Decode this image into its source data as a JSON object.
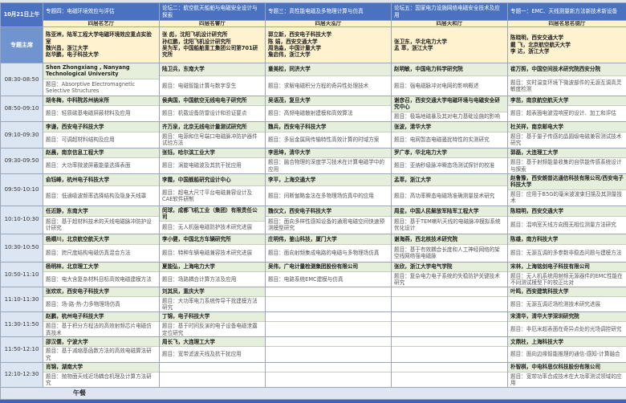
{
  "date_label": "10月21日上午",
  "chair_label": "专题主席",
  "topic_prefix": "题目：",
  "lunch": "午餐",
  "sessions": [
    {
      "title": "专题四：电磁环境效应与评估",
      "venue": "四层名艺厅",
      "chairs": [
        "陈亚洲，陆军工程大学电磁环境效应重点实验室",
        "魏兴昌，浙江大学",
        "赵华鹏，电子科技大学"
      ]
    },
    {
      "title": "论坛二：航空航天船舶与电磁安全设计与探索",
      "venue": "四层名睿厅",
      "chairs": [
        "张 彪，沈阳飞机设计研究所",
        "孙红鹏，沈阳飞机设计研究所",
        "吴为军，中国船舶重工集团公司第701研究所"
      ]
    },
    {
      "title": "专题三：高性能电磁及多物理计算与仿真",
      "venue": "四层天泓厅",
      "chairs": [
        "郭立新，西安电子科技大学",
        "陈 娟，西安交通大学",
        "周浩淼，中国计量大学",
        "詹启伟，浙江大学"
      ]
    },
    {
      "title": "论坛五：国家电力设施网络电磁安全技术及应用",
      "venue": "四层天和厅",
      "chairs": [
        "张卫东，华北电力大学",
        "孟 萃，浙江大学"
      ]
    },
    {
      "title": "专题一：EMC、天线测量新方法新技术新设备",
      "venue": "四层名思名德厅",
      "chairs": [
        "陈晓明，西安交通大学",
        "戴 飞，北京航空航天大学",
        "李 达，浙江大学"
      ]
    }
  ],
  "slots": [
    {
      "time": "08:30-08:50",
      "talks": [
        {
          "speaker": "Shen Zhongxiang , Nanyang Technological University",
          "topic": "Absorptive Electromagnetic Selective Structures"
        },
        {
          "speaker": "陆卫兵，东南大学",
          "topic": "电磁智能计算与数字孪生"
        },
        {
          "speaker": "童美松，同济大学",
          "topic": "求解电磁积分方程的奇异性处理技术"
        },
        {
          "speaker": "赵明敏，中国电力科学研究院",
          "topic": "强电磁脉冲对电网的影响概述"
        },
        {
          "speaker": "崔万照，中国空间技术研究院西安分院",
          "topic": "实时温变环境下微波部件的无源互调高灵敏度检测"
        }
      ]
    },
    {
      "time": "08:50-09:10",
      "talks": [
        {
          "speaker": "胡冬梅，中科院苏州纳米所",
          "topic": "轻质碳基电磁屏蔽材料及应用"
        },
        {
          "speaker": "侯典国，中国航空无线电电子研究所",
          "topic": "机载设备防雷设计和验证要点"
        },
        {
          "speaker": "吴语茂，复旦大学",
          "topic": "高频电磁散射建模和高效算法"
        },
        {
          "speaker": "谢彦召，西安交通大学电磁环境与电磁安全研究中心",
          "topic": "极端地磁暴及其对电力基础设施的影响"
        },
        {
          "speaker": "李茁，南京航空航天大学",
          "topic": "超表面电波混响室的设计、加工和评估"
        }
      ]
    },
    {
      "time": "09:10-09:30",
      "talks": [
        {
          "speaker": "李谦，西安电子科技大学",
          "topic": "可调超材料结构及应用"
        },
        {
          "speaker": "齐万泉，北京无线电计量测试研究所",
          "topic": "电源和信号端口电磁脉冲防护器件试验方法"
        },
        {
          "speaker": "魏兵，西安电子科技大学",
          "topic": "多层金属网传输特性高效计算的时域方案"
        },
        {
          "speaker": "张波，清华大学",
          "topic": "电网暂态电磁骚扰特性的实测研究"
        },
        {
          "speaker": "杜关祥，南京邮电大学",
          "topic": "基于量子传感的晶圆级电磁兼容测试技术研究"
        }
      ]
    },
    {
      "time": "09:30-09:50",
      "talks": [
        {
          "speaker": "赵晨，南京信息工程大学",
          "topic": "大功率微波屏蔽能量选择表面"
        },
        {
          "speaker": "张钰，哈尔滨工业大学",
          "topic": "涡旋电磁波及其抗干扰应用"
        },
        {
          "speaker": "李思坤，清华大学",
          "topic": "融合物理的深度学习技术在计算电磁学中的应用"
        },
        {
          "speaker": "罗广孝，华北电力大学",
          "topic": "亚纳秒级脉冲瞬态场测试探针的校准"
        },
        {
          "speaker": "郭磊，大连理工大学",
          "topic": "基于射频能量收集的自供能传感系统设计与探索"
        }
      ]
    },
    {
      "time": "09:50-10:10",
      "talks": [
        {
          "speaker": "俞钰峰，杭州电子科技大学",
          "topic": "低通吸波频率选择结构及隐身天线罩"
        },
        {
          "speaker": "李霞，中国舰船研究设计中心",
          "topic": "超电大尺寸平台电磁兼容设计及CAE软件研制"
        },
        {
          "speaker": "李平，上海交通大学",
          "topic": "间断伽略金法在多物理场仿真中的应用"
        },
        {
          "speaker": "孟萃，浙江大学",
          "topic": "高功率瞬态电磁场准确测量技术研究"
        },
        {
          "speaker": "赵鲁豫，西安朗普达通信科技有限公司/西安电子科技大学",
          "topic": "应用于B5G的毫米波波束扫描及其测量技术"
        }
      ]
    },
    {
      "time": "10:10-10:30",
      "talks": [
        {
          "speaker": "任近静，东南大学",
          "topic": "基于超材料技术的天线电磁脉冲防护设计研究"
        },
        {
          "speaker": "闵球，成都飞机工业（集团）有限责任公司",
          "topic": "无人机强电磁防护技术研究进展"
        },
        {
          "speaker": "魏仪文，西安电子科技大学",
          "topic": "面向多样性感知设备的通用电磁空间快速预测模型研究"
        },
        {
          "speaker": "周星，中国人民解放军陆军工程大学",
          "topic": "基于TEM喇叭天线的电磁脉冲模拟系统优化设计"
        },
        {
          "speaker": "陈晓明，西安交通大学",
          "topic": "混响室天线方向图无相位测量方法研究"
        }
      ]
    },
    {
      "time": "10:30-10:50",
      "talks": [
        {
          "speaker": "杨顺川，北京航空航天大学",
          "topic": "跨尺度结构电磁仿真混合方法"
        },
        {
          "speaker": "李小健，中国北方车辆研究所",
          "topic": "特种车辆电磁兼容技术研究进展"
        },
        {
          "speaker": "庄明伟，鉴山科技，厦门大学",
          "topic": "面向射频集成电路的电磁与多物理场仿真"
        },
        {
          "speaker": "谢海燕，西北核技术研究院",
          "topic": "基于有效耦合长度和人工神经网络的架空线网络强电磁脉"
        },
        {
          "speaker": "陈雄，南方科技大学",
          "topic": "无源互调的多参数非稳态问题与建模方法"
        }
      ]
    },
    {
      "time": "10:50-11:10",
      "talks": [
        {
          "speaker": "杨明林，北京理工大学",
          "topic": "电大含复杂材料目标高效电磁建模方法"
        },
        {
          "speaker": "夏能弘，上海电力大学",
          "topic": "场路耦合计算方法及应用"
        },
        {
          "speaker": "吴伟，广电计量检测集团股份有限公司",
          "topic": "电路系统EMC建模与仿真"
        },
        {
          "speaker": "张欣，浙江大学电气学院",
          "topic": "复杂电力电子系统的失稳防护关键技术研究"
        },
        {
          "speaker": "宋林，上海铭剑电子科技有限公司",
          "topic": "无人机系统用射频无源器件的EMC性能在不同测试模型下的校正比对"
        }
      ]
    },
    {
      "time": "11:10-11:30",
      "talks": [
        {
          "speaker": "张欢欢，西安电子科技大学",
          "topic": "场-路-热-力多物理场仿真"
        },
        {
          "speaker": "刘其凤，重庆大学",
          "topic": "大功率电力系统传导干扰建模方法研究"
        },
        null,
        null,
        {
          "speaker": "叶鸣，西安建筑科技大学",
          "topic": "无源互调近场检测技术研究进展"
        }
      ]
    },
    {
      "time": "11:30-11:50",
      "talks": [
        {
          "speaker": "赵鹏，杭州电子科技大学",
          "topic": "基于积分方程法的高效射频芯片电磁仿真技术"
        },
        {
          "speaker": "丁锦，电子科技大学",
          "topic": "基于时间反演的电子设备电磁泄露定位研究"
        },
        null,
        null,
        {
          "speaker": "宋清华，清华大学深圳研究院",
          "topic": "非厄米超表面在奇异点处的光场调控研究"
        }
      ]
    },
    {
      "time": "11:50-12:10",
      "talks": [
        {
          "speaker": "邵汉儒，宁波大学",
          "topic": "基于减缩基函数方法的高效电磁算法研究"
        },
        {
          "speaker": "周长飞，大连理工大学",
          "topic": "宽带滤波天线及抗干扰应用"
        },
        null,
        null,
        {
          "speaker": "文鼎柱，上海科技大学",
          "topic": "面向边缘智能推理的通信-感知-计算融合"
        }
      ]
    },
    {
      "time": "12:10-12:30",
      "talks": [
        {
          "speaker": "肖锦，湖南大学",
          "topic": "抛物面天线近场耦合机理及计算方法研究"
        },
        null,
        null,
        null,
        {
          "speaker": "朴智棋，中电科思仪科技股份有限公司",
          "topic": "宽带功率合成技术在大功率测试领域的应用"
        }
      ]
    }
  ]
}
